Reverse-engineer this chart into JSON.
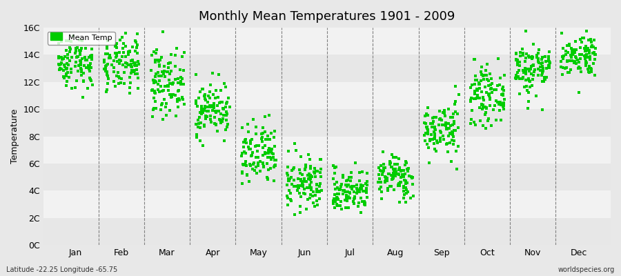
{
  "title": "Monthly Mean Temperatures 1901 - 2009",
  "ylabel": "Temperature",
  "xlabel_bottom_left": "Latitude -22.25 Longitude -65.75",
  "xlabel_bottom_right": "worldspecies.org",
  "legend_label": "Mean Temp",
  "marker_color": "#00cc00",
  "marker_size": 4,
  "background_color": "#e8e8e8",
  "plot_bg_color": "#f0f0f0",
  "ytick_labels": [
    "0C",
    "2C",
    "4C",
    "6C",
    "8C",
    "10C",
    "12C",
    "14C",
    "16C"
  ],
  "ytick_values": [
    0,
    2,
    4,
    6,
    8,
    10,
    12,
    14,
    16
  ],
  "month_names": [
    "Jan",
    "Feb",
    "Mar",
    "Apr",
    "May",
    "Jun",
    "Jul",
    "Aug",
    "Sep",
    "Oct",
    "Nov",
    "Dec"
  ],
  "monthly_mean_temps": [
    13.5,
    13.2,
    12.0,
    10.0,
    6.5,
    4.5,
    4.0,
    5.0,
    8.5,
    11.0,
    13.0,
    14.0
  ],
  "monthly_std": [
    1.0,
    1.0,
    1.2,
    1.0,
    1.2,
    1.0,
    0.8,
    0.8,
    1.0,
    1.0,
    1.0,
    0.8
  ],
  "n_years": 109,
  "seed": 42
}
